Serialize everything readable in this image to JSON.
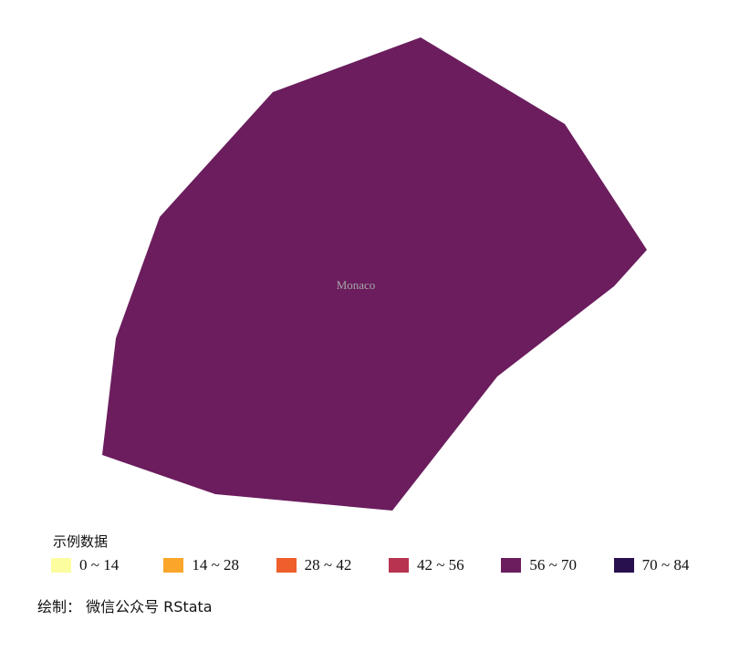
{
  "map": {
    "region": {
      "name": "Monaco",
      "fill_color": "#6b1d5d",
      "legend_class": "56 ~ 70"
    },
    "label_color": "#a6a6a6"
  },
  "legend": {
    "title": "示例数据",
    "items": [
      {
        "label": "0 ~ 14",
        "color": "#fcfd9f"
      },
      {
        "label": "14 ~ 28",
        "color": "#fba62b"
      },
      {
        "label": "28 ~ 42",
        "color": "#ee5f2b"
      },
      {
        "label": "42 ~ 56",
        "color": "#b73350"
      },
      {
        "label": "56 ~ 70",
        "color": "#6b1d5d"
      },
      {
        "label": "70 ~ 84",
        "color": "#28104f"
      }
    ]
  },
  "caption": "绘制：  微信公众号 RStata"
}
